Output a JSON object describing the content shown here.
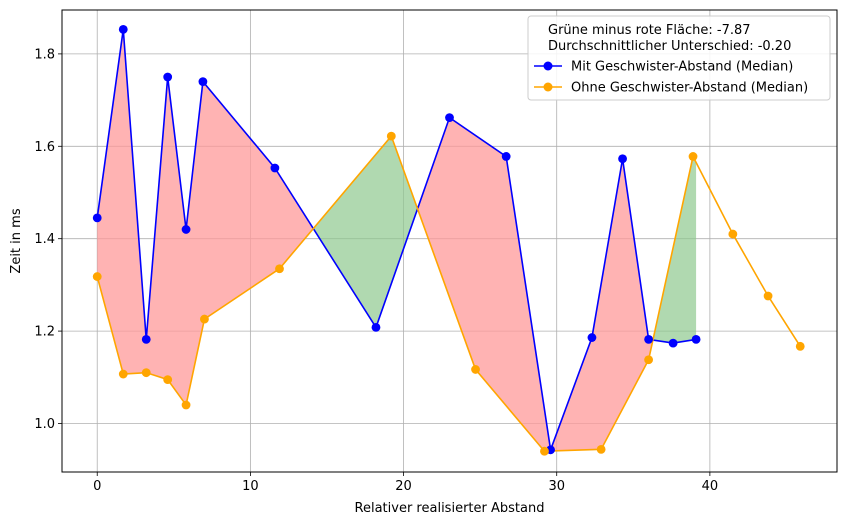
{
  "chart_data": {
    "type": "line",
    "title": "",
    "xlabel": "Relativer realisierter Abstand",
    "ylabel": "Zeit in ms",
    "xlim": [
      -2.3,
      48.3
    ],
    "ylim": [
      0.895,
      1.895
    ],
    "xticks": [
      0,
      10,
      20,
      30,
      40
    ],
    "yticks": [
      1.0,
      1.2,
      1.4,
      1.6,
      1.8
    ],
    "ytick_labels": [
      "1.0",
      "1.2",
      "1.4",
      "1.6",
      "1.8"
    ],
    "grid": true,
    "legend_position": "top-right",
    "annotations": [
      "Grüne minus rote Fläche: -7.87",
      "Durchschnittlicher Unterschied: -0.20"
    ],
    "series": [
      {
        "name": "Mit Geschwister-Abstand (Median)",
        "color": "#0000ff",
        "x": [
          0,
          1.7,
          3.2,
          4.6,
          5.8,
          6.9,
          11.6,
          18.2,
          23.0,
          26.7,
          29.6,
          32.3,
          34.3,
          36.0,
          37.6,
          39.1
        ],
        "y": [
          1.445,
          1.853,
          1.182,
          1.75,
          1.42,
          1.74,
          1.553,
          1.208,
          1.662,
          1.578,
          0.943,
          1.186,
          1.573,
          1.182,
          1.174,
          1.182
        ]
      },
      {
        "name": "Ohne Geschwister-Abstand (Median)",
        "color": "#ffa500",
        "x": [
          0,
          1.7,
          3.2,
          4.6,
          5.8,
          7.0,
          11.9,
          19.2,
          24.7,
          29.2,
          32.9,
          36.0,
          38.9,
          41.5,
          43.8,
          45.9
        ],
        "y": [
          1.318,
          1.107,
          1.11,
          1.095,
          1.04,
          1.226,
          1.335,
          1.622,
          1.117,
          0.94,
          0.944,
          1.138,
          1.578,
          1.41,
          1.276,
          1.167
        ]
      }
    ],
    "fill_colors": {
      "negative": "#ff9999",
      "positive": "#8fc98f"
    }
  }
}
